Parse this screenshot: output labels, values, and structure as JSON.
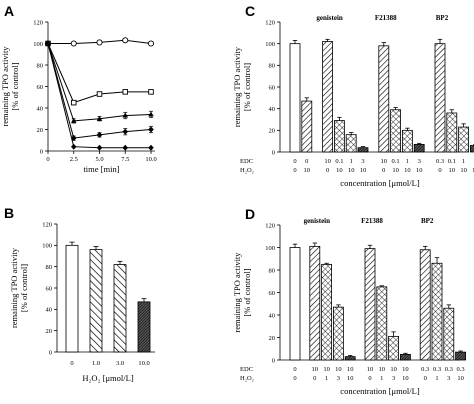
{
  "chart_data": [
    {
      "panel": "A",
      "type": "line",
      "xlabel": "time [min]",
      "ylabel_line1": "remaining TPO activity",
      "ylabel_line2": "[% of control]",
      "xlim": [
        0,
        10
      ],
      "ylim": [
        0,
        120
      ],
      "x_ticks": [
        "0",
        "2.5",
        "5.0",
        "7.5",
        "10.0"
      ],
      "y_ticks": [
        "0",
        "20",
        "40",
        "60",
        "80",
        "100",
        "120"
      ],
      "x": [
        0,
        2.5,
        5,
        7.5,
        10
      ],
      "series": [
        {
          "values": [
            100,
            100,
            101,
            103,
            100
          ],
          "err": [
            2,
            1,
            1,
            1,
            1
          ],
          "marker": "open-circle"
        },
        {
          "values": [
            100,
            45,
            53,
            55,
            55
          ],
          "err": [
            2,
            2,
            2,
            1,
            1
          ],
          "marker": "open-square"
        },
        {
          "values": [
            100,
            28,
            30,
            33,
            34
          ],
          "err": [
            2,
            2,
            2,
            3,
            3
          ],
          "marker": "filled-triangle"
        },
        {
          "values": [
            100,
            12,
            15,
            18,
            20
          ],
          "err": [
            2,
            2,
            2,
            3,
            3
          ],
          "marker": "filled-diamond"
        },
        {
          "values": [
            100,
            4,
            3,
            3,
            3
          ],
          "err": [
            2,
            1,
            1,
            1,
            1
          ],
          "marker": "filled-diamond"
        }
      ]
    },
    {
      "panel": "B",
      "type": "bar",
      "xlabel": "H₂O₂ [μmol/L]",
      "ylabel_line1": "remaining TPO activity",
      "ylabel_line2": "[% of control]",
      "ylim": [
        0,
        120
      ],
      "y_ticks": [
        "0",
        "20",
        "40",
        "60",
        "80",
        "100",
        "120"
      ],
      "categories": [
        "0",
        "1.0",
        "3.0",
        "10.0"
      ],
      "values": [
        100,
        96,
        82,
        47
      ],
      "err": [
        3,
        3,
        3,
        3
      ]
    },
    {
      "panel": "C",
      "type": "bar",
      "xlabel": "concentration [μmol/L]",
      "ylabel_line1": "remaining TPO activity",
      "ylabel_line2": "[% of control]",
      "ylim": [
        0,
        120
      ],
      "y_ticks": [
        "0",
        "20",
        "40",
        "60",
        "80",
        "100",
        "120"
      ],
      "row1_label": "EDC",
      "row2_label": "H₂O₂",
      "groups": [
        "genistein",
        "F21388",
        "BP2"
      ],
      "bars": [
        {
          "edc": "0",
          "h2o2": "0",
          "value": 100,
          "err": 3,
          "style": "open"
        },
        {
          "edc": "0",
          "h2o2": "10",
          "value": 47,
          "err": 3,
          "style": "hatch"
        },
        {
          "edc": "10",
          "h2o2": "0",
          "value": 102,
          "err": 2,
          "style": "hatch"
        },
        {
          "edc": "0.1",
          "h2o2": "10",
          "value": 29,
          "err": 3,
          "style": "cross"
        },
        {
          "edc": "1",
          "h2o2": "10",
          "value": 16,
          "err": 2,
          "style": "cross"
        },
        {
          "edc": "3",
          "h2o2": "10",
          "value": 4,
          "err": 1,
          "style": "dense"
        },
        {
          "edc": "10",
          "h2o2": "0",
          "value": 98,
          "err": 3,
          "style": "hatch"
        },
        {
          "edc": "0.1",
          "h2o2": "10",
          "value": 39,
          "err": 2,
          "style": "cross"
        },
        {
          "edc": "1",
          "h2o2": "10",
          "value": 20,
          "err": 2,
          "style": "cross"
        },
        {
          "edc": "3",
          "h2o2": "10",
          "value": 7,
          "err": 1,
          "style": "dense"
        },
        {
          "edc": "0.3",
          "h2o2": "0",
          "value": 100,
          "err": 4,
          "style": "hatch"
        },
        {
          "edc": "0.1",
          "h2o2": "10",
          "value": 36,
          "err": 3,
          "style": "cross"
        },
        {
          "edc": "1",
          "h2o2": "10",
          "value": 23,
          "err": 3,
          "style": "cross"
        },
        {
          "edc": "3",
          "h2o2": "10",
          "value": 6,
          "err": 1,
          "style": "dense"
        }
      ]
    },
    {
      "panel": "D",
      "type": "bar",
      "xlabel": "concentration [μmol/L]",
      "ylabel_line1": "remaining TPO activity",
      "ylabel_line2": "[% of control]",
      "ylim": [
        0,
        120
      ],
      "y_ticks": [
        "0",
        "20",
        "40",
        "60",
        "80",
        "100",
        "120"
      ],
      "row1_label": "EDC",
      "row2_label": "H₂O₂",
      "groups": [
        "genistein",
        "F21388",
        "BP2"
      ],
      "bars": [
        {
          "edc": "0",
          "h2o2": "0",
          "value": 100,
          "err": 3,
          "style": "open"
        },
        {
          "edc": "10",
          "h2o2": "0",
          "value": 101,
          "err": 3,
          "style": "hatch"
        },
        {
          "edc": "10",
          "h2o2": "1",
          "value": 85,
          "err": 1,
          "style": "cross"
        },
        {
          "edc": "10",
          "h2o2": "3",
          "value": 47,
          "err": 2,
          "style": "cross"
        },
        {
          "edc": "10",
          "h2o2": "10",
          "value": 3,
          "err": 1,
          "style": "dense"
        },
        {
          "edc": "10",
          "h2o2": "0",
          "value": 99,
          "err": 3,
          "style": "hatch"
        },
        {
          "edc": "10",
          "h2o2": "1",
          "value": 65,
          "err": 1,
          "style": "cross"
        },
        {
          "edc": "10",
          "h2o2": "3",
          "value": 21,
          "err": 4,
          "style": "cross"
        },
        {
          "edc": "10",
          "h2o2": "10",
          "value": 5,
          "err": 1,
          "style": "dense"
        },
        {
          "edc": "0.3",
          "h2o2": "0",
          "value": 98,
          "err": 3,
          "style": "hatch"
        },
        {
          "edc": "0.3",
          "h2o2": "1",
          "value": 86,
          "err": 5,
          "style": "cross"
        },
        {
          "edc": "0.3",
          "h2o2": "3",
          "value": 46,
          "err": 3,
          "style": "cross"
        },
        {
          "edc": "0.3",
          "h2o2": "10",
          "value": 7,
          "err": 1,
          "style": "dense"
        }
      ]
    }
  ]
}
